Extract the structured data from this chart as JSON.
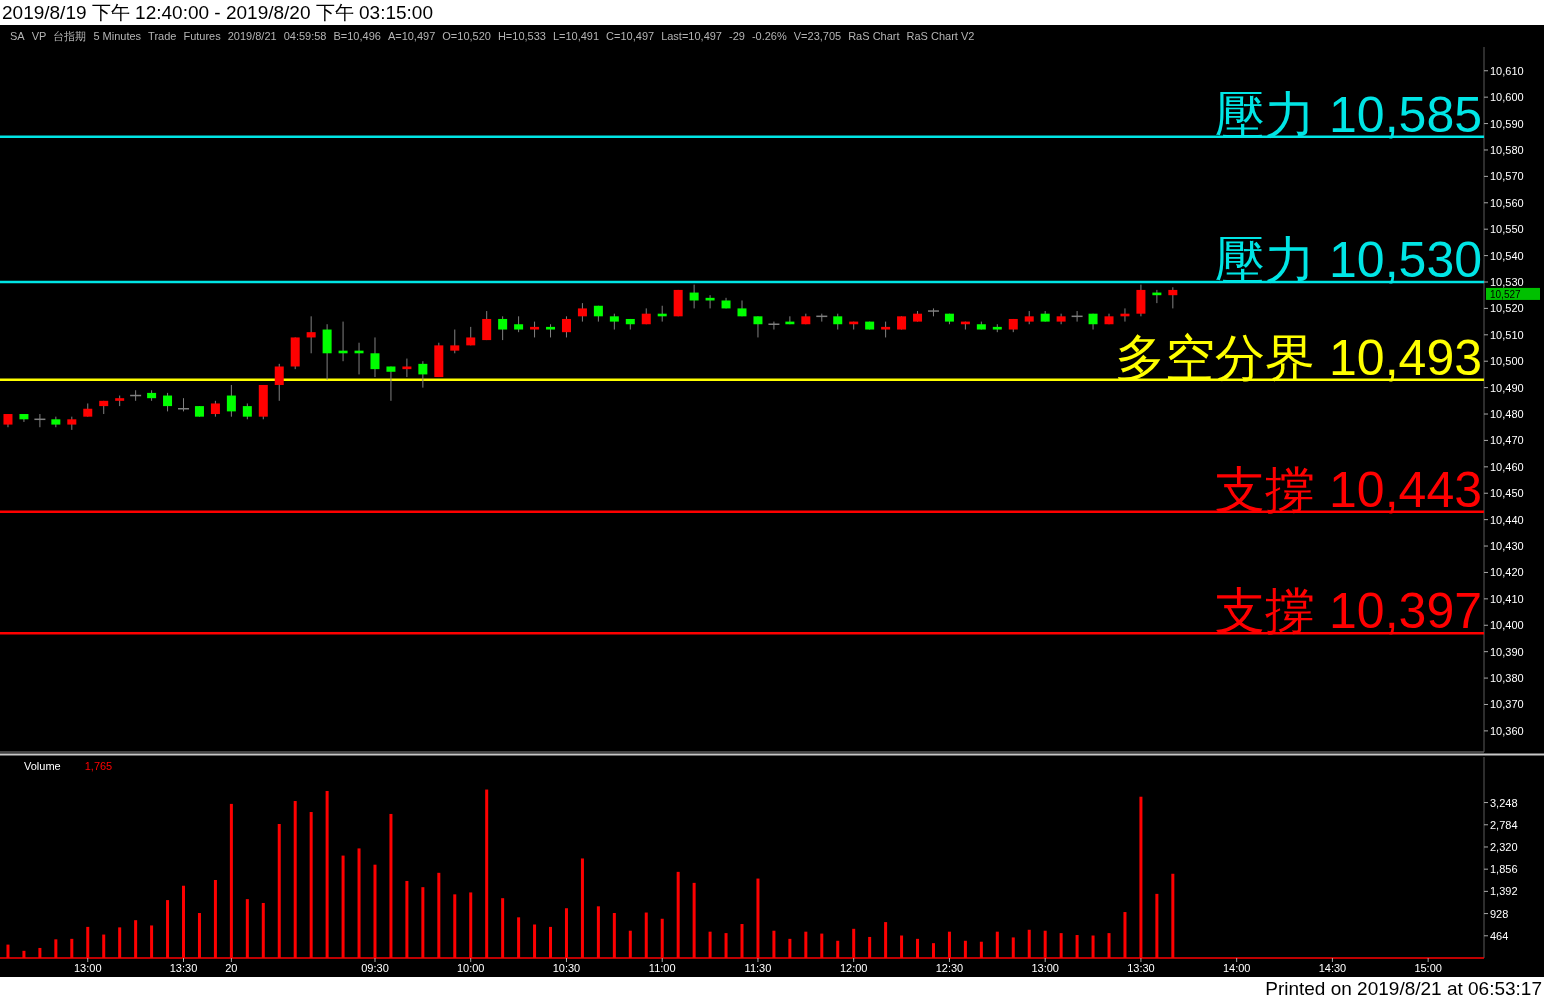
{
  "chart_data": [
    {
      "type": "candlestick",
      "title": "2019/8/19 下午 12:40:00 - 2019/8/20 下午 03:15:00",
      "categories": [
        null,
        null,
        null,
        null,
        null,
        null,
        null,
        null,
        null,
        null,
        null,
        null,
        null,
        null,
        null,
        null,
        null,
        null,
        null,
        null,
        null,
        null,
        null,
        null,
        null,
        null,
        null,
        null,
        null,
        null,
        null,
        null,
        null,
        null,
        null,
        null,
        null,
        null,
        null,
        null,
        null,
        null,
        null,
        null,
        null,
        null,
        null,
        null,
        null,
        null,
        null,
        null,
        null,
        null,
        null,
        null,
        null,
        null,
        null,
        null,
        null,
        null,
        null,
        null,
        null,
        null,
        null,
        null,
        null,
        null,
        null,
        null,
        null,
        null,
        null,
        null,
        null,
        null,
        null,
        null,
        null,
        null,
        null,
        null,
        null,
        null,
        null,
        null,
        null,
        null,
        null,
        null,
        null
      ],
      "ohlc": [
        [
          10476,
          10480,
          10475,
          10480
        ],
        [
          10480,
          10480,
          10477,
          10478
        ],
        [
          10478,
          10480,
          10475,
          10478
        ],
        [
          10478,
          10479,
          10475,
          10476
        ],
        [
          10476,
          10479,
          10474,
          10478
        ],
        [
          10479,
          10484,
          10479,
          10482
        ],
        [
          10483,
          10485,
          10480,
          10485
        ],
        [
          10485,
          10487,
          10483,
          10486
        ],
        [
          10487,
          10489,
          10485,
          10487
        ],
        [
          10488,
          10489,
          10485,
          10486
        ],
        [
          10487,
          10488,
          10481,
          10483
        ],
        [
          10482,
          10486,
          10481,
          10482
        ],
        [
          10483,
          10483,
          10479,
          10479
        ],
        [
          10480,
          10485,
          10479,
          10484
        ],
        [
          10487,
          10491,
          10479,
          10481
        ],
        [
          10483,
          10484,
          10478,
          10479
        ],
        [
          10479,
          10491,
          10478,
          10491
        ],
        [
          10491,
          10499,
          10485,
          10498
        ],
        [
          10498,
          10509,
          10497,
          10509
        ],
        [
          10509,
          10517,
          10503,
          10511
        ],
        [
          10512,
          10514,
          10493,
          10503
        ],
        [
          10504,
          10515,
          10500,
          10503
        ],
        [
          10504,
          10507,
          10495,
          10503
        ],
        [
          10503,
          10509,
          10494,
          10497
        ],
        [
          10498,
          10498,
          10485,
          10496
        ],
        [
          10497,
          10501,
          10494,
          10498
        ],
        [
          10499,
          10500,
          10490,
          10495
        ],
        [
          10494,
          10507,
          10494,
          10506
        ],
        [
          10504,
          10512,
          10503,
          10506
        ],
        [
          10506,
          10513,
          10506,
          10509
        ],
        [
          10508,
          10519,
          10508,
          10516
        ],
        [
          10516,
          10517,
          10508,
          10512
        ],
        [
          10514,
          10517,
          10511,
          10512
        ],
        [
          10512,
          10515,
          10509,
          10513
        ],
        [
          10513,
          10514,
          10509,
          10512
        ],
        [
          10511,
          10517,
          10509,
          10516
        ],
        [
          10517,
          10522,
          10515,
          10520
        ],
        [
          10521,
          10521,
          10515,
          10517
        ],
        [
          10517,
          10518,
          10512,
          10515
        ],
        [
          10516,
          10516,
          10512,
          10514
        ],
        [
          10514,
          10520,
          10514,
          10518
        ],
        [
          10518,
          10521,
          10515,
          10517
        ],
        [
          10517,
          10527,
          10517,
          10527
        ],
        [
          10526,
          10529,
          10520,
          10523
        ],
        [
          10524,
          10525,
          10520,
          10523
        ],
        [
          10523,
          10524,
          10520,
          10520
        ],
        [
          10520,
          10523,
          10517,
          10517
        ],
        [
          10517,
          10517,
          10509,
          10514
        ],
        [
          10514,
          10515,
          10512,
          10514
        ],
        [
          10515,
          10517,
          10514,
          10514
        ],
        [
          10514,
          10518,
          10514,
          10517
        ],
        [
          10517,
          10518,
          10515,
          10517
        ],
        [
          10517,
          10518,
          10512,
          10514
        ],
        [
          10514,
          10515,
          10512,
          10515
        ],
        [
          10515,
          10515,
          10512,
          10512
        ],
        [
          10512,
          10515,
          10509,
          10513
        ],
        [
          10512,
          10517,
          10512,
          10517
        ],
        [
          10515,
          10519,
          10515,
          10518
        ],
        [
          10519,
          10520,
          10517,
          10519
        ],
        [
          10518,
          10518,
          10514,
          10515
        ],
        [
          10514,
          10515,
          10512,
          10515
        ],
        [
          10514,
          10515,
          10512,
          10512
        ],
        [
          10513,
          10514,
          10511,
          10512
        ],
        [
          10512,
          10516,
          10511,
          10516
        ],
        [
          10515,
          10519,
          10514,
          10517
        ],
        [
          10518,
          10519,
          10515,
          10515
        ],
        [
          10515,
          10518,
          10514,
          10517
        ],
        [
          10517,
          10519,
          10515,
          10517
        ],
        [
          10518,
          10518,
          10512,
          10514
        ],
        [
          10514,
          10518,
          10514,
          10517
        ],
        [
          10517,
          10520,
          10515,
          10518
        ],
        [
          10518,
          10529,
          10517,
          10527
        ],
        [
          10526,
          10527,
          10522,
          10525
        ],
        [
          10525,
          10528,
          10520,
          10527
        ],
        null,
        null,
        null,
        null,
        null,
        null,
        null,
        null,
        null,
        null,
        null,
        null,
        null,
        null,
        null,
        null,
        null,
        null,
        null
      ],
      "colors": [
        "#ff0000",
        "#00ff00",
        "#808080",
        "#00ff00",
        "#ff0000",
        "#ff0000",
        "#ff0000",
        "#ff0000",
        "#808080",
        "#00ff00",
        "#00ff00",
        "#808080",
        "#00ff00",
        "#ff0000",
        "#00ff00",
        "#00ff00",
        "#ff0000",
        "#ff0000",
        "#ff0000",
        "#ff0000",
        "#00ff00",
        "#00ff00",
        "#00ff00",
        "#00ff00",
        "#00ff00",
        "#ff0000",
        "#00ff00",
        "#ff0000",
        "#ff0000",
        "#ff0000",
        "#ff0000",
        "#00ff00",
        "#00ff00",
        "#ff0000",
        "#00ff00",
        "#ff0000",
        "#ff0000",
        "#00ff00",
        "#00ff00",
        "#00ff00",
        "#ff0000",
        "#00ff00",
        "#ff0000",
        "#00ff00",
        "#00ff00",
        "#00ff00",
        "#00ff00",
        "#00ff00",
        "#808080",
        "#00ff00",
        "#ff0000",
        "#808080",
        "#00ff00",
        "#ff0000",
        "#00ff00",
        "#ff0000",
        "#ff0000",
        "#ff0000",
        "#808080",
        "#00ff00",
        "#ff0000",
        "#00ff00",
        "#00ff00",
        "#ff0000",
        "#ff0000",
        "#00ff00",
        "#ff0000",
        "#808080",
        "#00ff00",
        "#ff0000",
        "#ff0000",
        "#ff0000",
        "#00ff00",
        "#ff0000",
        null,
        null,
        null,
        null,
        null,
        null,
        null,
        null,
        null,
        null,
        null,
        null,
        null,
        null,
        null,
        null,
        null,
        null,
        null
      ],
      "ylim": [
        10352,
        10619
      ],
      "yticks": [
        {
          "value": 10360,
          "label": "10,360"
        },
        {
          "value": 10370,
          "label": "10,370"
        },
        {
          "value": 10380,
          "label": "10,380"
        },
        {
          "value": 10390,
          "label": "10,390"
        },
        {
          "value": 10400,
          "label": "10,400"
        },
        {
          "value": 10410,
          "label": "10,410"
        },
        {
          "value": 10420,
          "label": "10,420"
        },
        {
          "value": 10430,
          "label": "10,430"
        },
        {
          "value": 10440,
          "label": "10,440"
        },
        {
          "value": 10450,
          "label": "10,450"
        },
        {
          "value": 10460,
          "label": "10,460"
        },
        {
          "value": 10470,
          "label": "10,470"
        },
        {
          "value": 10480,
          "label": "10,480"
        },
        {
          "value": 10490,
          "label": "10,490"
        },
        {
          "value": 10500,
          "label": "10,500"
        },
        {
          "value": 10510,
          "label": "10,510"
        },
        {
          "value": 10520,
          "label": "10,520"
        },
        {
          "value": 10530,
          "label": "10,530"
        },
        {
          "value": 10540,
          "label": "10,540"
        },
        {
          "value": 10550,
          "label": "10,550"
        },
        {
          "value": 10560,
          "label": "10,560"
        },
        {
          "value": 10570,
          "label": "10,570"
        },
        {
          "value": 10580,
          "label": "10,580"
        },
        {
          "value": 10590,
          "label": "10,590"
        },
        {
          "value": 10600,
          "label": "10,600"
        },
        {
          "value": 10610,
          "label": "10,610"
        }
      ],
      "tick_labels": "y",
      "ref_lines": [
        {
          "axis": "y",
          "value": 10585,
          "label": "壓力 10,585",
          "color": "#00e5e5"
        },
        {
          "axis": "y",
          "value": 10530,
          "label": "壓力 10,530",
          "color": "#00e5e5"
        },
        {
          "axis": "y",
          "value": 10493,
          "label": "多空分界 10,493",
          "color": "#ffff00"
        },
        {
          "axis": "y",
          "value": 10443,
          "label": "支撐 10,443",
          "color": "#ff0000"
        },
        {
          "axis": "y",
          "value": 10397,
          "label": "支撐 10,397",
          "color": "#ff0000"
        }
      ],
      "annotations": [
        "SA",
        "VP",
        "台指期",
        "5 Minutes",
        "Trade",
        "Futures",
        "2019/8/21",
        "04:59:58",
        "B=10,496",
        "A=10,497",
        "O=10,520",
        "H=10,533",
        "L=10,491",
        "C=10,497",
        "Last=10,497",
        "-29",
        "-0.26%",
        "V=23,705",
        "RaS Chart",
        "RaS Chart V2",
        "10,527"
      ]
    },
    {
      "type": "bar",
      "title": "Volume",
      "color": "#ff0000",
      "categories": [
        null,
        null,
        null,
        null,
        null,
        "13:00",
        null,
        null,
        null,
        null,
        null,
        "13:30",
        null,
        null,
        "20",
        null,
        null,
        null,
        null,
        null,
        null,
        null,
        null,
        "09:30",
        null,
        null,
        null,
        null,
        null,
        "10:00",
        null,
        null,
        null,
        null,
        null,
        "10:30",
        null,
        null,
        null,
        null,
        null,
        "11:00",
        null,
        null,
        null,
        null,
        null,
        "11:30",
        null,
        null,
        null,
        null,
        null,
        "12:00",
        null,
        null,
        null,
        null,
        null,
        "12:30",
        null,
        null,
        null,
        null,
        null,
        "13:00",
        null,
        null,
        null,
        null,
        null,
        "13:30",
        null,
        null,
        null,
        null,
        null,
        "14:00",
        null,
        null,
        null,
        null,
        null,
        "14:30",
        null,
        null,
        null,
        null,
        null,
        "15:00",
        null,
        null,
        null
      ],
      "values": [
        280,
        150,
        210,
        390,
        400,
        650,
        490,
        640,
        790,
        680,
        1210,
        1510,
        940,
        1630,
        3220,
        1230,
        1150,
        2800,
        3280,
        3050,
        3490,
        2140,
        2290,
        1950,
        3010,
        1610,
        1480,
        1780,
        1330,
        1370,
        3520,
        1250,
        850,
        700,
        650,
        1040,
        2080,
        1080,
        940,
        570,
        950,
        820,
        1800,
        1570,
        550,
        520,
        710,
        1660,
        570,
        400,
        550,
        510,
        360,
        610,
        440,
        750,
        470,
        400,
        310,
        550,
        360,
        340,
        550,
        430,
        590,
        570,
        520,
        480,
        470,
        520,
        960,
        3370,
        1340,
        1760,
        null,
        null,
        null,
        null,
        null,
        null,
        null,
        null,
        null,
        null,
        null,
        null,
        null,
        null,
        null,
        null,
        null,
        null,
        null
      ],
      "ylim": [
        0,
        4200
      ],
      "yticks": [
        464,
        928,
        {
          "value": 1392,
          "label": "1,392"
        },
        {
          "value": 1856,
          "label": "1,856"
        },
        {
          "value": 2320,
          "label": "2,320"
        },
        {
          "value": 2784,
          "label": "2,784"
        },
        {
          "value": 3248,
          "label": "3,248"
        }
      ],
      "annotations": [
        "1,765",
        "Printed on 2019/8/21 at 06:53:17"
      ]
    }
  ]
}
